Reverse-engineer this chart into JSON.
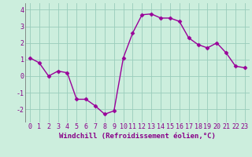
{
  "x": [
    0,
    1,
    2,
    3,
    4,
    5,
    6,
    7,
    8,
    9,
    10,
    11,
    12,
    13,
    14,
    15,
    16,
    17,
    18,
    19,
    20,
    21,
    22,
    23
  ],
  "y": [
    1.1,
    0.8,
    0.0,
    0.3,
    0.2,
    -1.4,
    -1.4,
    -1.8,
    -2.3,
    -2.1,
    1.1,
    2.6,
    3.7,
    3.75,
    3.5,
    3.5,
    3.3,
    2.3,
    1.9,
    1.7,
    2.0,
    1.4,
    0.6,
    0.5
  ],
  "line_color": "#990099",
  "marker": "D",
  "markersize": 2.5,
  "linewidth": 1.0,
  "background_color": "#cceedd",
  "grid_color": "#99ccbb",
  "xlabel": "Windchill (Refroidissement éolien,°C)",
  "xlabel_fontsize": 6.5,
  "tick_fontsize": 6,
  "xlim": [
    -0.5,
    23.5
  ],
  "ylim": [
    -2.8,
    4.4
  ],
  "yticks": [
    -2,
    -1,
    0,
    1,
    2,
    3,
    4
  ],
  "xticks": [
    0,
    1,
    2,
    3,
    4,
    5,
    6,
    7,
    8,
    9,
    10,
    11,
    12,
    13,
    14,
    15,
    16,
    17,
    18,
    19,
    20,
    21,
    22,
    23
  ]
}
